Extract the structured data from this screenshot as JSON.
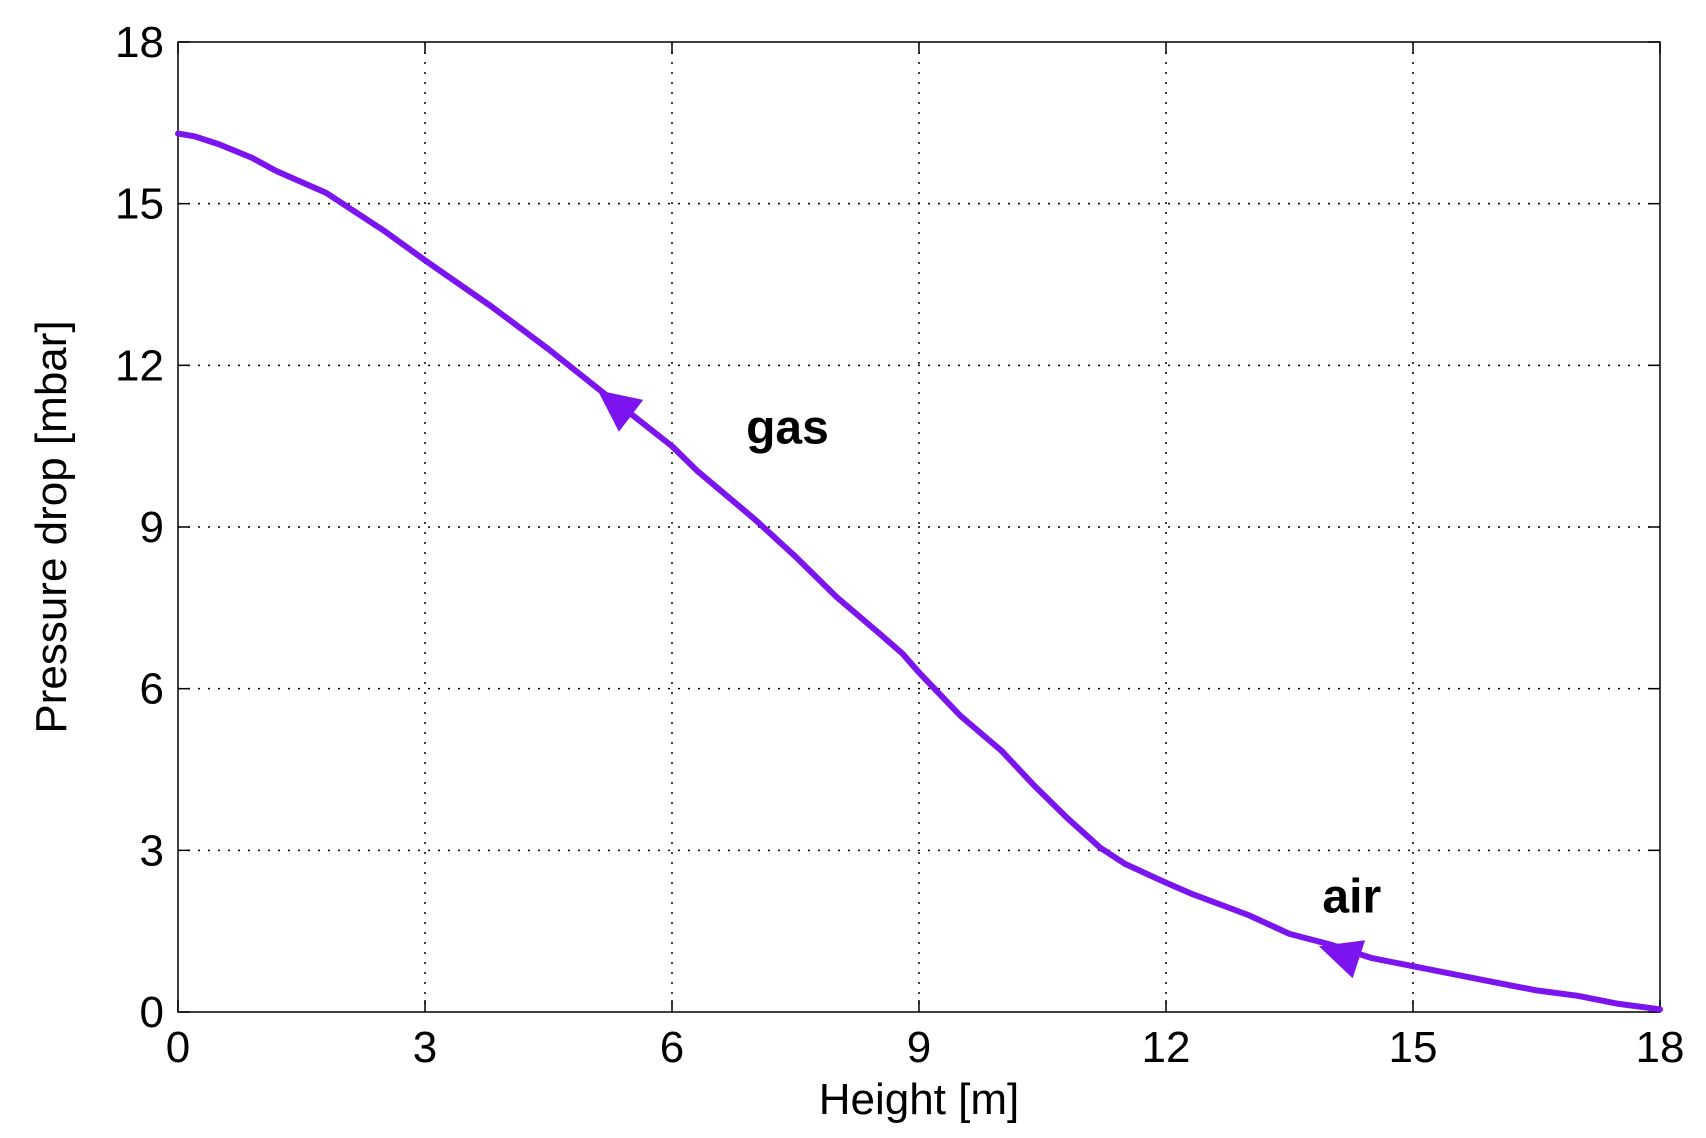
{
  "chart_data": {
    "type": "line",
    "title": "",
    "xlabel": "Height [m]",
    "ylabel": "Pressure drop [mbar]",
    "xlim": [
      0,
      18
    ],
    "ylim": [
      0,
      18
    ],
    "xticks": [
      "0",
      "3",
      "6",
      "9",
      "12",
      "15",
      "18"
    ],
    "yticks": [
      "0",
      "3",
      "6",
      "9",
      "12",
      "15",
      "18"
    ],
    "grid": true,
    "line_color": "#7b14ef",
    "series": [
      {
        "x": [
          0,
          0.2,
          0.5,
          0.9,
          1.2,
          1.8,
          2.5,
          3.0,
          3.8,
          4.5,
          5.2,
          5.5,
          6.0,
          6.3,
          7.0,
          7.5,
          8.0,
          8.5,
          8.8,
          9.0,
          9.5,
          10.0,
          10.4,
          10.8,
          11.2,
          11.5,
          12.0,
          12.3,
          13.0,
          13.5,
          14.0,
          14.5,
          15.0,
          15.5,
          16.0,
          16.5,
          17.0,
          17.5,
          18.0
        ],
        "y": [
          16.3,
          16.25,
          16.1,
          15.85,
          15.6,
          15.2,
          14.5,
          13.95,
          13.1,
          12.3,
          11.45,
          11.1,
          10.5,
          10.05,
          9.15,
          8.45,
          7.7,
          7.05,
          6.65,
          6.3,
          5.5,
          4.85,
          4.2,
          3.6,
          3.05,
          2.75,
          2.4,
          2.2,
          1.8,
          1.45,
          1.25,
          1.0,
          0.85,
          0.7,
          0.55,
          0.4,
          0.3,
          0.15,
          0.05
        ]
      }
    ],
    "annotations": [
      {
        "text": "gas",
        "x": 6.9,
        "y": 10.55
      },
      {
        "text": "air",
        "x": 13.9,
        "y": 1.85
      }
    ],
    "arrows": [
      {
        "x": 5.3,
        "y": 11.3,
        "direction": "upstream"
      },
      {
        "x": 14.1,
        "y": 1.1,
        "direction": "upstream"
      }
    ]
  }
}
